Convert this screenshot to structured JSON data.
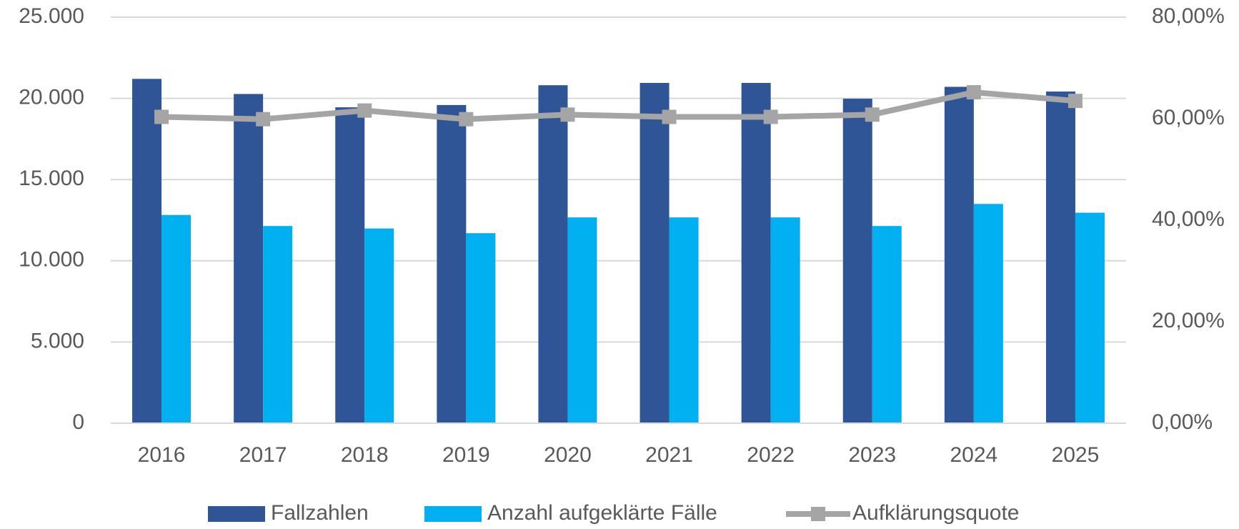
{
  "chart_data": {
    "type": "bar",
    "categories": [
      "2016",
      "2017",
      "2018",
      "2019",
      "2020",
      "2021",
      "2022",
      "2023",
      "2024",
      "2025"
    ],
    "series": [
      {
        "name": "Fallzahlen",
        "color": "#2f5597",
        "values": [
          21200,
          20270,
          19450,
          19590,
          20810,
          20950,
          20950,
          19980,
          20710,
          20420
        ]
      },
      {
        "name": "Anzahl aufgeklärte Fälle",
        "color": "#00b0f0",
        "values": [
          12820,
          12140,
          11990,
          11700,
          12670,
          12670,
          12670,
          12140,
          13500,
          12960
        ]
      },
      {
        "name": "Aufklärungsquote",
        "type": "line",
        "axis": "y2",
        "color": "#a5a5a5",
        "values": [
          60.35,
          59.9,
          61.6,
          59.9,
          60.8,
          60.35,
          60.35,
          60.8,
          65.2,
          63.5
        ]
      }
    ],
    "ylim": [
      0,
      25000
    ],
    "yticks": [
      0,
      {
        "value": 5000,
        "label": "5.000"
      },
      {
        "value": 10000,
        "label": "10.000"
      },
      {
        "value": 15000,
        "label": "15.000"
      },
      {
        "value": 20000,
        "label": "20.000"
      },
      {
        "value": 25000,
        "label": "25.000"
      }
    ],
    "y2lim": [
      0,
      80
    ],
    "y2ticks": [
      {
        "value": 0,
        "label": "0,00%"
      },
      {
        "value": 20,
        "label": "20,00%"
      },
      {
        "value": 40,
        "label": "40,00%"
      },
      {
        "value": 60,
        "label": "60,00%"
      },
      {
        "value": 80,
        "label": "80,00%"
      }
    ],
    "grid": true,
    "legend": "bottom"
  }
}
